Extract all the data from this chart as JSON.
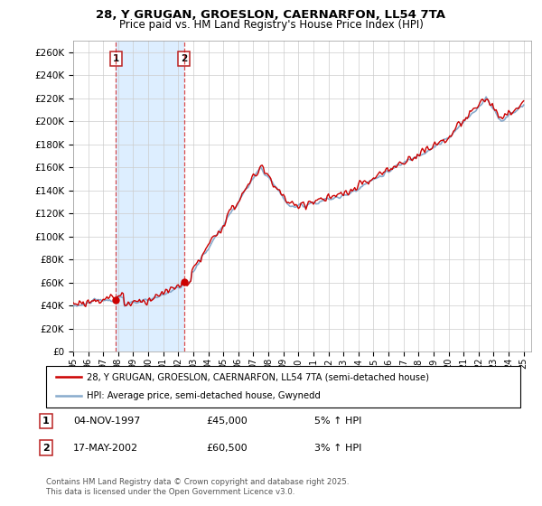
{
  "title1": "28, Y GRUGAN, GROESLON, CAERNARFON, LL54 7TA",
  "title2": "Price paid vs. HM Land Registry's House Price Index (HPI)",
  "ylabel_ticks": [
    "£0",
    "£20K",
    "£40K",
    "£60K",
    "£80K",
    "£100K",
    "£120K",
    "£140K",
    "£160K",
    "£180K",
    "£200K",
    "£220K",
    "£240K",
    "£260K"
  ],
  "ytick_values": [
    0,
    20000,
    40000,
    60000,
    80000,
    100000,
    120000,
    140000,
    160000,
    180000,
    200000,
    220000,
    240000,
    260000
  ],
  "ylim": [
    0,
    270000
  ],
  "year_start": 1995,
  "year_end": 2025,
  "sale1_price": 45000,
  "sale1_x": 1997.84,
  "sale2_price": 60500,
  "sale2_x": 2002.37,
  "legend1": "28, Y GRUGAN, GROESLON, CAERNARFON, LL54 7TA (semi-detached house)",
  "legend2": "HPI: Average price, semi-detached house, Gwynedd",
  "table_row1": [
    "1",
    "04-NOV-1997",
    "£45,000",
    "5% ↑ HPI"
  ],
  "table_row2": [
    "2",
    "17-MAY-2002",
    "£60,500",
    "3% ↑ HPI"
  ],
  "footnote": "Contains HM Land Registry data © Crown copyright and database right 2025.\nThis data is licensed under the Open Government Licence v3.0.",
  "line_color_red": "#cc0000",
  "line_color_blue": "#88aacc",
  "shade_color": "#ddeeff",
  "grid_color": "#cccccc",
  "vline_color": "#cc0000"
}
